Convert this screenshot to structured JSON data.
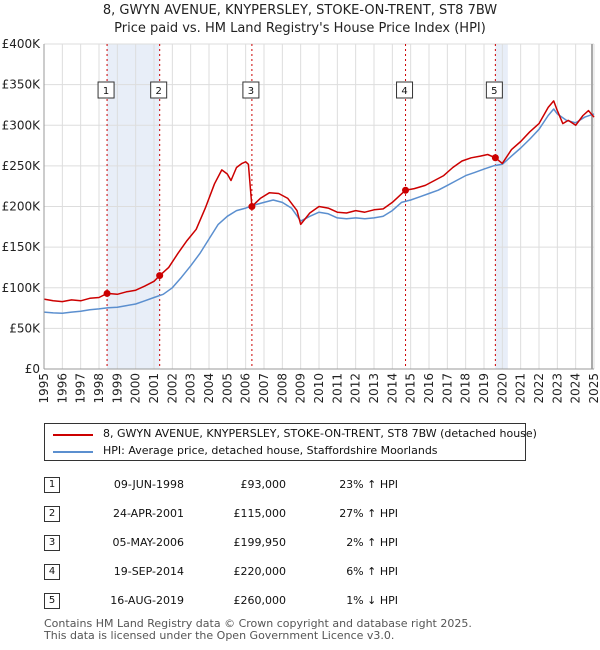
{
  "chart_data": {
    "type": "line",
    "title": "8, GWYN AVENUE, KNYPERSLEY, STOKE-ON-TRENT, ST8 7BW",
    "subtitle": "Price paid vs. HM Land Registry's House Price Index (HPI)",
    "xlabel": "",
    "ylabel": "",
    "xlim": [
      1995,
      2025
    ],
    "ylim": [
      0,
      400000
    ],
    "x_ticks": [
      "1995",
      "1996",
      "1997",
      "1998",
      "1999",
      "2000",
      "2001",
      "2002",
      "2003",
      "2004",
      "2005",
      "2006",
      "2007",
      "2008",
      "2009",
      "2010",
      "2011",
      "2012",
      "2013",
      "2014",
      "2015",
      "2016",
      "2017",
      "2018",
      "2019",
      "2020",
      "2021",
      "2022",
      "2023",
      "2024",
      "2025"
    ],
    "y_ticks": [
      {
        "value": 0,
        "label": "£0"
      },
      {
        "value": 50000,
        "label": "£50K"
      },
      {
        "value": 100000,
        "label": "£100K"
      },
      {
        "value": 150000,
        "label": "£150K"
      },
      {
        "value": 200000,
        "label": "£200K"
      },
      {
        "value": 250000,
        "label": "£250K"
      },
      {
        "value": 300000,
        "label": "£300K"
      },
      {
        "value": 350000,
        "label": "£350K"
      },
      {
        "value": 400000,
        "label": "£400K"
      }
    ],
    "series": [
      {
        "name": "8, GWYN AVENUE, KNYPERSLEY, STOKE-ON-TRENT, ST8 7BW (detached house)",
        "color": "#cc0000",
        "points": [
          [
            1995.0,
            86000
          ],
          [
            1995.5,
            84000
          ],
          [
            1996.0,
            83000
          ],
          [
            1996.5,
            85000
          ],
          [
            1997.0,
            84000
          ],
          [
            1997.5,
            87000
          ],
          [
            1998.0,
            88000
          ],
          [
            1998.44,
            93000
          ],
          [
            1999.0,
            92000
          ],
          [
            1999.5,
            95000
          ],
          [
            2000.0,
            97000
          ],
          [
            2000.5,
            102000
          ],
          [
            2001.0,
            108000
          ],
          [
            2001.31,
            115000
          ],
          [
            2001.8,
            125000
          ],
          [
            2002.3,
            142000
          ],
          [
            2002.8,
            158000
          ],
          [
            2003.3,
            172000
          ],
          [
            2003.8,
            198000
          ],
          [
            2004.3,
            228000
          ],
          [
            2004.7,
            245000
          ],
          [
            2005.0,
            240000
          ],
          [
            2005.2,
            232000
          ],
          [
            2005.5,
            248000
          ],
          [
            2005.8,
            253000
          ],
          [
            2006.0,
            255000
          ],
          [
            2006.15,
            252000
          ],
          [
            2006.34,
            199950
          ],
          [
            2006.8,
            210000
          ],
          [
            2007.3,
            217000
          ],
          [
            2007.8,
            216000
          ],
          [
            2008.3,
            210000
          ],
          [
            2008.8,
            195000
          ],
          [
            2009.0,
            178000
          ],
          [
            2009.5,
            192000
          ],
          [
            2010.0,
            200000
          ],
          [
            2010.5,
            198000
          ],
          [
            2011.0,
            193000
          ],
          [
            2011.5,
            192000
          ],
          [
            2012.0,
            195000
          ],
          [
            2012.5,
            193000
          ],
          [
            2013.0,
            196000
          ],
          [
            2013.5,
            197000
          ],
          [
            2014.0,
            205000
          ],
          [
            2014.72,
            220000
          ],
          [
            2015.2,
            222000
          ],
          [
            2015.8,
            226000
          ],
          [
            2016.3,
            232000
          ],
          [
            2016.8,
            238000
          ],
          [
            2017.3,
            248000
          ],
          [
            2017.8,
            256000
          ],
          [
            2018.3,
            260000
          ],
          [
            2018.8,
            262000
          ],
          [
            2019.2,
            264000
          ],
          [
            2019.62,
            260000
          ],
          [
            2020.0,
            253000
          ],
          [
            2020.5,
            270000
          ],
          [
            2021.0,
            280000
          ],
          [
            2021.5,
            292000
          ],
          [
            2022.0,
            302000
          ],
          [
            2022.5,
            322000
          ],
          [
            2022.8,
            330000
          ],
          [
            2023.0,
            318000
          ],
          [
            2023.3,
            302000
          ],
          [
            2023.6,
            306000
          ],
          [
            2024.0,
            300000
          ],
          [
            2024.4,
            312000
          ],
          [
            2024.7,
            318000
          ],
          [
            2025.0,
            310000
          ]
        ]
      },
      {
        "name": "HPI: Average price, detached house, Staffordshire Moorlands",
        "color": "#5b8fcf",
        "points": [
          [
            1995.0,
            70000
          ],
          [
            1995.5,
            69000
          ],
          [
            1996.0,
            68500
          ],
          [
            1996.5,
            70000
          ],
          [
            1997.0,
            71000
          ],
          [
            1997.5,
            73000
          ],
          [
            1998.0,
            74000
          ],
          [
            1998.5,
            75500
          ],
          [
            1999.0,
            76000
          ],
          [
            1999.5,
            78000
          ],
          [
            2000.0,
            80000
          ],
          [
            2000.5,
            84000
          ],
          [
            2001.0,
            88000
          ],
          [
            2001.5,
            92000
          ],
          [
            2002.0,
            100000
          ],
          [
            2002.5,
            113000
          ],
          [
            2003.0,
            127000
          ],
          [
            2003.5,
            142000
          ],
          [
            2004.0,
            160000
          ],
          [
            2004.5,
            178000
          ],
          [
            2005.0,
            188000
          ],
          [
            2005.5,
            195000
          ],
          [
            2006.0,
            198000
          ],
          [
            2006.5,
            202000
          ],
          [
            2007.0,
            205000
          ],
          [
            2007.5,
            208000
          ],
          [
            2008.0,
            205000
          ],
          [
            2008.5,
            198000
          ],
          [
            2009.0,
            182000
          ],
          [
            2009.5,
            188000
          ],
          [
            2010.0,
            193000
          ],
          [
            2010.5,
            191000
          ],
          [
            2011.0,
            186000
          ],
          [
            2011.5,
            185000
          ],
          [
            2012.0,
            186000
          ],
          [
            2012.5,
            185000
          ],
          [
            2013.0,
            186000
          ],
          [
            2013.5,
            188000
          ],
          [
            2014.0,
            195000
          ],
          [
            2014.5,
            205000
          ],
          [
            2015.0,
            208000
          ],
          [
            2015.5,
            212000
          ],
          [
            2016.0,
            216000
          ],
          [
            2016.5,
            220000
          ],
          [
            2017.0,
            226000
          ],
          [
            2017.5,
            232000
          ],
          [
            2018.0,
            238000
          ],
          [
            2018.5,
            242000
          ],
          [
            2019.0,
            246000
          ],
          [
            2019.5,
            250000
          ],
          [
            2020.0,
            252000
          ],
          [
            2020.5,
            262000
          ],
          [
            2021.0,
            272000
          ],
          [
            2021.5,
            283000
          ],
          [
            2022.0,
            295000
          ],
          [
            2022.5,
            312000
          ],
          [
            2022.8,
            320000
          ],
          [
            2023.0,
            314000
          ],
          [
            2023.5,
            306000
          ],
          [
            2024.0,
            303000
          ],
          [
            2024.5,
            310000
          ],
          [
            2025.0,
            314000
          ]
        ]
      }
    ],
    "sales": [
      {
        "num": "1",
        "x": 1998.44,
        "price": 93000,
        "date": "09-JUN-1998",
        "price_label": "£93,000",
        "hpi": "23% ↑ HPI"
      },
      {
        "num": "2",
        "x": 2001.31,
        "price": 115000,
        "date": "24-APR-2001",
        "price_label": "£115,000",
        "hpi": "27% ↑ HPI"
      },
      {
        "num": "3",
        "x": 2006.34,
        "price": 199950,
        "date": "05-MAY-2006",
        "price_label": "£199,950",
        "hpi": "2% ↑ HPI"
      },
      {
        "num": "4",
        "x": 2014.72,
        "price": 220000,
        "date": "19-SEP-2014",
        "price_label": "£220,000",
        "hpi": "6% ↑ HPI"
      },
      {
        "num": "5",
        "x": 2019.62,
        "price": 260000,
        "date": "16-AUG-2019",
        "price_label": "£260,000",
        "hpi": "1% ↓ HPI"
      }
    ],
    "shaded_spans": [
      [
        1998.44,
        2001.31
      ],
      [
        2019.62,
        2020.3
      ]
    ],
    "colors": {
      "property": "#cc0000",
      "hpi": "#5b8fcf",
      "shade": "#e8eef8",
      "grid": "#dddddd"
    }
  },
  "legend": {
    "property_label": "8, GWYN AVENUE, KNYPERSLEY, STOKE-ON-TRENT, ST8 7BW (detached house)",
    "hpi_label": "HPI: Average price, detached house, Staffordshire Moorlands"
  },
  "footer": {
    "line1": "Contains HM Land Registry data © Crown copyright and database right 2025.",
    "line2": "This data is licensed under the Open Government Licence v3.0."
  }
}
